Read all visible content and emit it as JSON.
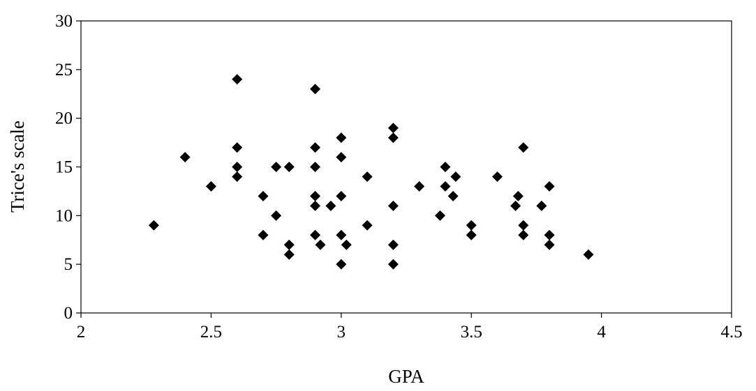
{
  "chart_data": {
    "type": "scatter",
    "title": "",
    "xlabel": "GPA",
    "ylabel": "Trice's scale",
    "xlim": [
      2,
      4.5
    ],
    "ylim": [
      0,
      30
    ],
    "x_ticks": [
      2,
      2.5,
      3,
      3.5,
      4,
      4.5
    ],
    "x_tick_labels": [
      "2",
      "2.5",
      "3",
      "3.5",
      "4",
      "4.5"
    ],
    "y_ticks": [
      0,
      5,
      10,
      15,
      20,
      25,
      30
    ],
    "y_tick_labels": [
      "0",
      "5",
      "10",
      "15",
      "20",
      "25",
      "30"
    ],
    "grid": false,
    "legend": "none",
    "marker": "diamond",
    "marker_color": "#000000",
    "points": [
      [
        2.28,
        9
      ],
      [
        2.4,
        16
      ],
      [
        2.5,
        13
      ],
      [
        2.6,
        24
      ],
      [
        2.6,
        17
      ],
      [
        2.6,
        15
      ],
      [
        2.6,
        14
      ],
      [
        2.7,
        12
      ],
      [
        2.7,
        8
      ],
      [
        2.75,
        15
      ],
      [
        2.75,
        10
      ],
      [
        2.8,
        15
      ],
      [
        2.8,
        7
      ],
      [
        2.8,
        6
      ],
      [
        2.9,
        23
      ],
      [
        2.9,
        17
      ],
      [
        2.9,
        15
      ],
      [
        2.9,
        12
      ],
      [
        2.9,
        11
      ],
      [
        2.9,
        8
      ],
      [
        2.92,
        7
      ],
      [
        2.96,
        11
      ],
      [
        3.0,
        18
      ],
      [
        3.0,
        16
      ],
      [
        3.0,
        12
      ],
      [
        3.0,
        8
      ],
      [
        3.0,
        5
      ],
      [
        3.02,
        7
      ],
      [
        3.1,
        14
      ],
      [
        3.1,
        9
      ],
      [
        3.2,
        19
      ],
      [
        3.2,
        18
      ],
      [
        3.2,
        11
      ],
      [
        3.2,
        7
      ],
      [
        3.2,
        5
      ],
      [
        3.3,
        13
      ],
      [
        3.38,
        10
      ],
      [
        3.4,
        15
      ],
      [
        3.4,
        13
      ],
      [
        3.43,
        12
      ],
      [
        3.44,
        14
      ],
      [
        3.5,
        9
      ],
      [
        3.5,
        8
      ],
      [
        3.6,
        14
      ],
      [
        3.67,
        11
      ],
      [
        3.68,
        12
      ],
      [
        3.7,
        17
      ],
      [
        3.7,
        9
      ],
      [
        3.7,
        8
      ],
      [
        3.77,
        11
      ],
      [
        3.8,
        13
      ],
      [
        3.8,
        8
      ],
      [
        3.8,
        7
      ],
      [
        3.95,
        6
      ]
    ]
  }
}
